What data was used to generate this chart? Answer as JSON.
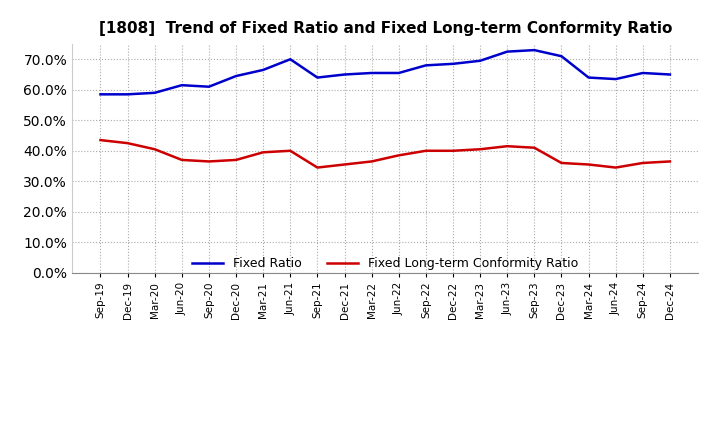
{
  "title": "[1808]  Trend of Fixed Ratio and Fixed Long-term Conformity Ratio",
  "x_labels": [
    "Sep-19",
    "Dec-19",
    "Mar-20",
    "Jun-20",
    "Sep-20",
    "Dec-20",
    "Mar-21",
    "Jun-21",
    "Sep-21",
    "Dec-21",
    "Mar-22",
    "Jun-22",
    "Sep-22",
    "Dec-22",
    "Mar-23",
    "Jun-23",
    "Sep-23",
    "Dec-23",
    "Mar-24",
    "Jun-24",
    "Sep-24",
    "Dec-24"
  ],
  "fixed_ratio": [
    58.5,
    58.5,
    59.0,
    61.5,
    61.0,
    64.5,
    66.5,
    70.0,
    64.0,
    65.0,
    65.5,
    65.5,
    68.0,
    68.5,
    69.5,
    72.5,
    73.0,
    71.0,
    64.0,
    63.5,
    65.5,
    65.0
  ],
  "fixed_lterm_ratio": [
    43.5,
    42.5,
    40.5,
    37.0,
    36.5,
    37.0,
    39.5,
    40.0,
    34.5,
    35.5,
    36.5,
    38.5,
    40.0,
    40.0,
    40.5,
    41.5,
    41.0,
    36.0,
    35.5,
    34.5,
    36.0,
    36.5
  ],
  "fixed_ratio_color": "#0000CC",
  "fixed_lterm_ratio_color": "#CC0000",
  "ylim": [
    0,
    75
  ],
  "yticks": [
    0,
    10,
    20,
    30,
    40,
    50,
    60,
    70
  ],
  "background_color": "#ffffff",
  "grid_color": "#aaaaaa",
  "legend_fixed_ratio": "Fixed Ratio",
  "legend_fixed_lterm_ratio": "Fixed Long-term Conformity Ratio"
}
